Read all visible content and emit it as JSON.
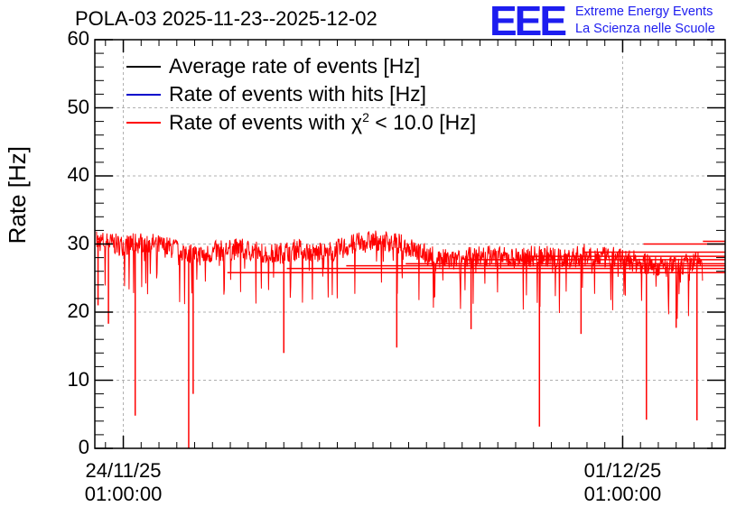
{
  "header": {
    "title": "POLA-03 2025-11-23--2025-12-02",
    "logo": "EEE",
    "logo_line1": "Extreme Energy Events",
    "logo_line2": "La Scienza nelle Scuole"
  },
  "colors": {
    "average": "#000000",
    "hits": "#0000cc",
    "chi2": "#ff0000",
    "logo": "#1d1df0",
    "grid": "#b0b0b0"
  },
  "chart_data": {
    "type": "line",
    "title": "POLA-03 2025-11-23--2025-12-02",
    "ylabel": "Rate [Hz]",
    "xlabel": "",
    "ylim": [
      0,
      60
    ],
    "xlim": [
      "2025-11-23T15:25:00",
      "2025-12-02T11:30:00"
    ],
    "grid": true,
    "legend_position": "top-left",
    "yticks": [
      0,
      10,
      20,
      30,
      40,
      50,
      60
    ],
    "xticks": [
      {
        "x": "2025-11-24T01:00:00",
        "label_date": "24/11/25",
        "label_time": "01:00:00"
      },
      {
        "x": "2025-12-01T01:00:00",
        "label_date": "01/12/25",
        "label_time": "01:00:00"
      }
    ],
    "series": [
      {
        "name": "Average rate of events [Hz]",
        "color": "#000000",
        "values": []
      },
      {
        "name": "Rate of events with hits [Hz]",
        "color": "#0000cc",
        "values": []
      },
      {
        "name": "Rate of events with χ² < 10.0 [Hz]",
        "name_main": "Rate of events with ",
        "name_chi": "χ",
        "name_sup": "2",
        "name_tail": " < 10.0 [Hz]",
        "color": "#ff0000",
        "x": [
          "2025-11-23T16:00",
          "2025-11-23T20:00",
          "2025-11-24T00:00",
          "2025-11-24T04:00",
          "2025-11-24T08:00",
          "2025-11-24T12:00",
          "2025-11-24T16:00",
          "2025-11-24T20:00",
          "2025-11-25T00:00",
          "2025-11-25T04:00",
          "2025-11-25T08:00",
          "2025-11-25T12:00",
          "2025-11-25T16:00",
          "2025-11-25T20:00",
          "2025-11-26T00:00",
          "2025-11-26T04:00",
          "2025-11-26T08:00",
          "2025-11-26T12:00",
          "2025-11-26T16:00",
          "2025-11-26T20:00",
          "2025-11-27T00:00",
          "2025-11-27T04:00",
          "2025-11-27T08:00",
          "2025-11-27T12:00",
          "2025-11-27T16:00",
          "2025-11-27T20:00",
          "2025-11-28T00:00",
          "2025-11-28T04:00",
          "2025-11-28T08:00",
          "2025-11-28T12:00",
          "2025-11-28T16:00",
          "2025-11-28T20:00",
          "2025-11-29T00:00",
          "2025-11-29T04:00",
          "2025-11-29T08:00",
          "2025-11-29T12:00",
          "2025-11-29T16:00",
          "2025-11-29T20:00",
          "2025-11-30T00:00",
          "2025-11-30T04:00",
          "2025-11-30T08:00",
          "2025-11-30T12:00",
          "2025-11-30T16:00",
          "2025-11-30T20:00",
          "2025-12-01T00:00",
          "2025-12-01T04:00",
          "2025-12-01T08:00",
          "2025-12-01T12:00",
          "2025-12-01T16:00",
          "2025-12-01T20:00",
          "2025-12-02T00:00",
          "2025-12-02T04:00"
        ],
        "values": [
          30.5,
          30.2,
          29.8,
          30.0,
          30.3,
          29.9,
          29.5,
          29.2,
          28.6,
          28.3,
          28.9,
          29.1,
          29.3,
          29.0,
          28.7,
          28.5,
          28.9,
          29.3,
          28.8,
          28.6,
          29.0,
          29.6,
          30.1,
          30.4,
          30.6,
          30.2,
          29.7,
          28.9,
          28.2,
          27.8,
          27.5,
          27.9,
          28.1,
          28.3,
          28.0,
          27.9,
          28.1,
          28.3,
          28.2,
          27.8,
          28.0,
          28.4,
          28.2,
          27.9,
          28.1,
          27.6,
          27.1,
          26.8,
          26.6,
          26.9,
          27.2,
          27.6
        ]
      }
    ],
    "dips": [
      {
        "x": "2025-11-24T05:00",
        "y": 4.8
      },
      {
        "x": "2025-11-24T23:00",
        "y": 0.0
      },
      {
        "x": "2025-11-25T00:30",
        "y": 8.0
      },
      {
        "x": "2025-11-29T21:00",
        "y": 3.2
      },
      {
        "x": "2025-12-01T09:00",
        "y": 4.2
      },
      {
        "x": "2025-12-02T02:00",
        "y": 4.1
      },
      {
        "x": "2025-11-23T20:00",
        "y": 18.3
      },
      {
        "x": "2025-11-26T07:00",
        "y": 14.0
      },
      {
        "x": "2025-11-27T21:00",
        "y": 14.8
      },
      {
        "x": "2025-11-28T22:00",
        "y": 17.5
      },
      {
        "x": "2025-11-30T11:00",
        "y": 16.8
      },
      {
        "x": "2025-12-01T19:00",
        "y": 17.7
      },
      {
        "x": "2025-11-23T16:30",
        "y": 21.0
      }
    ],
    "trailing_levels": [
      30.4,
      30.0,
      28.8,
      28.2,
      27.7,
      27.1,
      26.8,
      26.4,
      25.8
    ]
  }
}
